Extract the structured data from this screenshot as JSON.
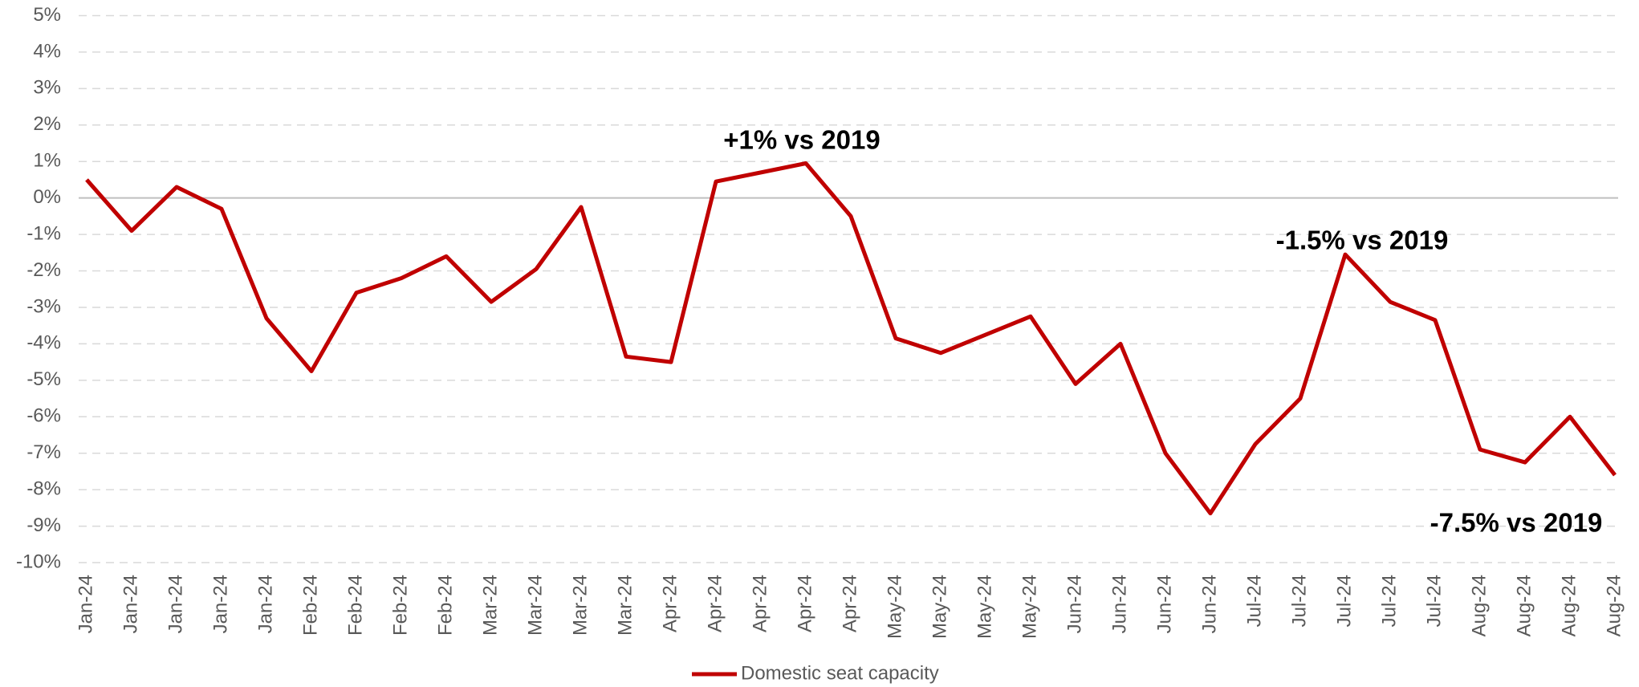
{
  "chart_data": {
    "type": "line",
    "categories": [
      "Jan-24",
      "Jan-24",
      "Jan-24",
      "Jan-24",
      "Jan-24",
      "Feb-24",
      "Feb-24",
      "Feb-24",
      "Feb-24",
      "Mar-24",
      "Mar-24",
      "Mar-24",
      "Mar-24",
      "Apr-24",
      "Apr-24",
      "Apr-24",
      "Apr-24",
      "Apr-24",
      "May-24",
      "May-24",
      "May-24",
      "May-24",
      "Jun-24",
      "Jun-24",
      "Jun-24",
      "Jun-24",
      "Jul-24",
      "Jul-24",
      "Jul-24",
      "Jul-24",
      "Jul-24",
      "Aug-24",
      "Aug-24",
      "Aug-24",
      "Aug-24"
    ],
    "series": [
      {
        "name": "Domestic seat capacity",
        "color": "#c00000",
        "values": [
          0.5,
          -0.9,
          0.3,
          -0.3,
          -3.3,
          -4.75,
          -2.6,
          -2.2,
          -1.6,
          -2.85,
          -1.95,
          -0.25,
          -4.35,
          -4.5,
          0.45,
          0.7,
          0.95,
          -0.5,
          -3.85,
          -4.25,
          -3.75,
          -3.25,
          -5.1,
          -4.0,
          -7.0,
          -8.65,
          -6.75,
          -5.5,
          -1.55,
          -2.85,
          -3.35,
          -6.9,
          -7.25,
          -6.0,
          -7.6
        ]
      }
    ],
    "ylim": [
      -10,
      5
    ],
    "yticks": [
      {
        "value": -10,
        "label": "-10%"
      },
      {
        "value": -9,
        "label": "-9%"
      },
      {
        "value": -8,
        "label": "-8%"
      },
      {
        "value": -7,
        "label": "-7%"
      },
      {
        "value": -6,
        "label": "-6%"
      },
      {
        "value": -5,
        "label": "-5%"
      },
      {
        "value": -4,
        "label": "-4%"
      },
      {
        "value": -3,
        "label": "-3%"
      },
      {
        "value": -2,
        "label": "-2%"
      },
      {
        "value": -1,
        "label": "-1%"
      },
      {
        "value": 0,
        "label": "0%"
      },
      {
        "value": 1,
        "label": "1%"
      },
      {
        "value": 2,
        "label": "2%"
      },
      {
        "value": 3,
        "label": "3%"
      },
      {
        "value": 4,
        "label": "4%"
      },
      {
        "value": 5,
        "label": "5%"
      }
    ],
    "grid": true,
    "legend": "bottom",
    "annotations": [
      "+1% vs 2019",
      "-1.5% vs 2019",
      "-7.5% vs 2019"
    ]
  }
}
